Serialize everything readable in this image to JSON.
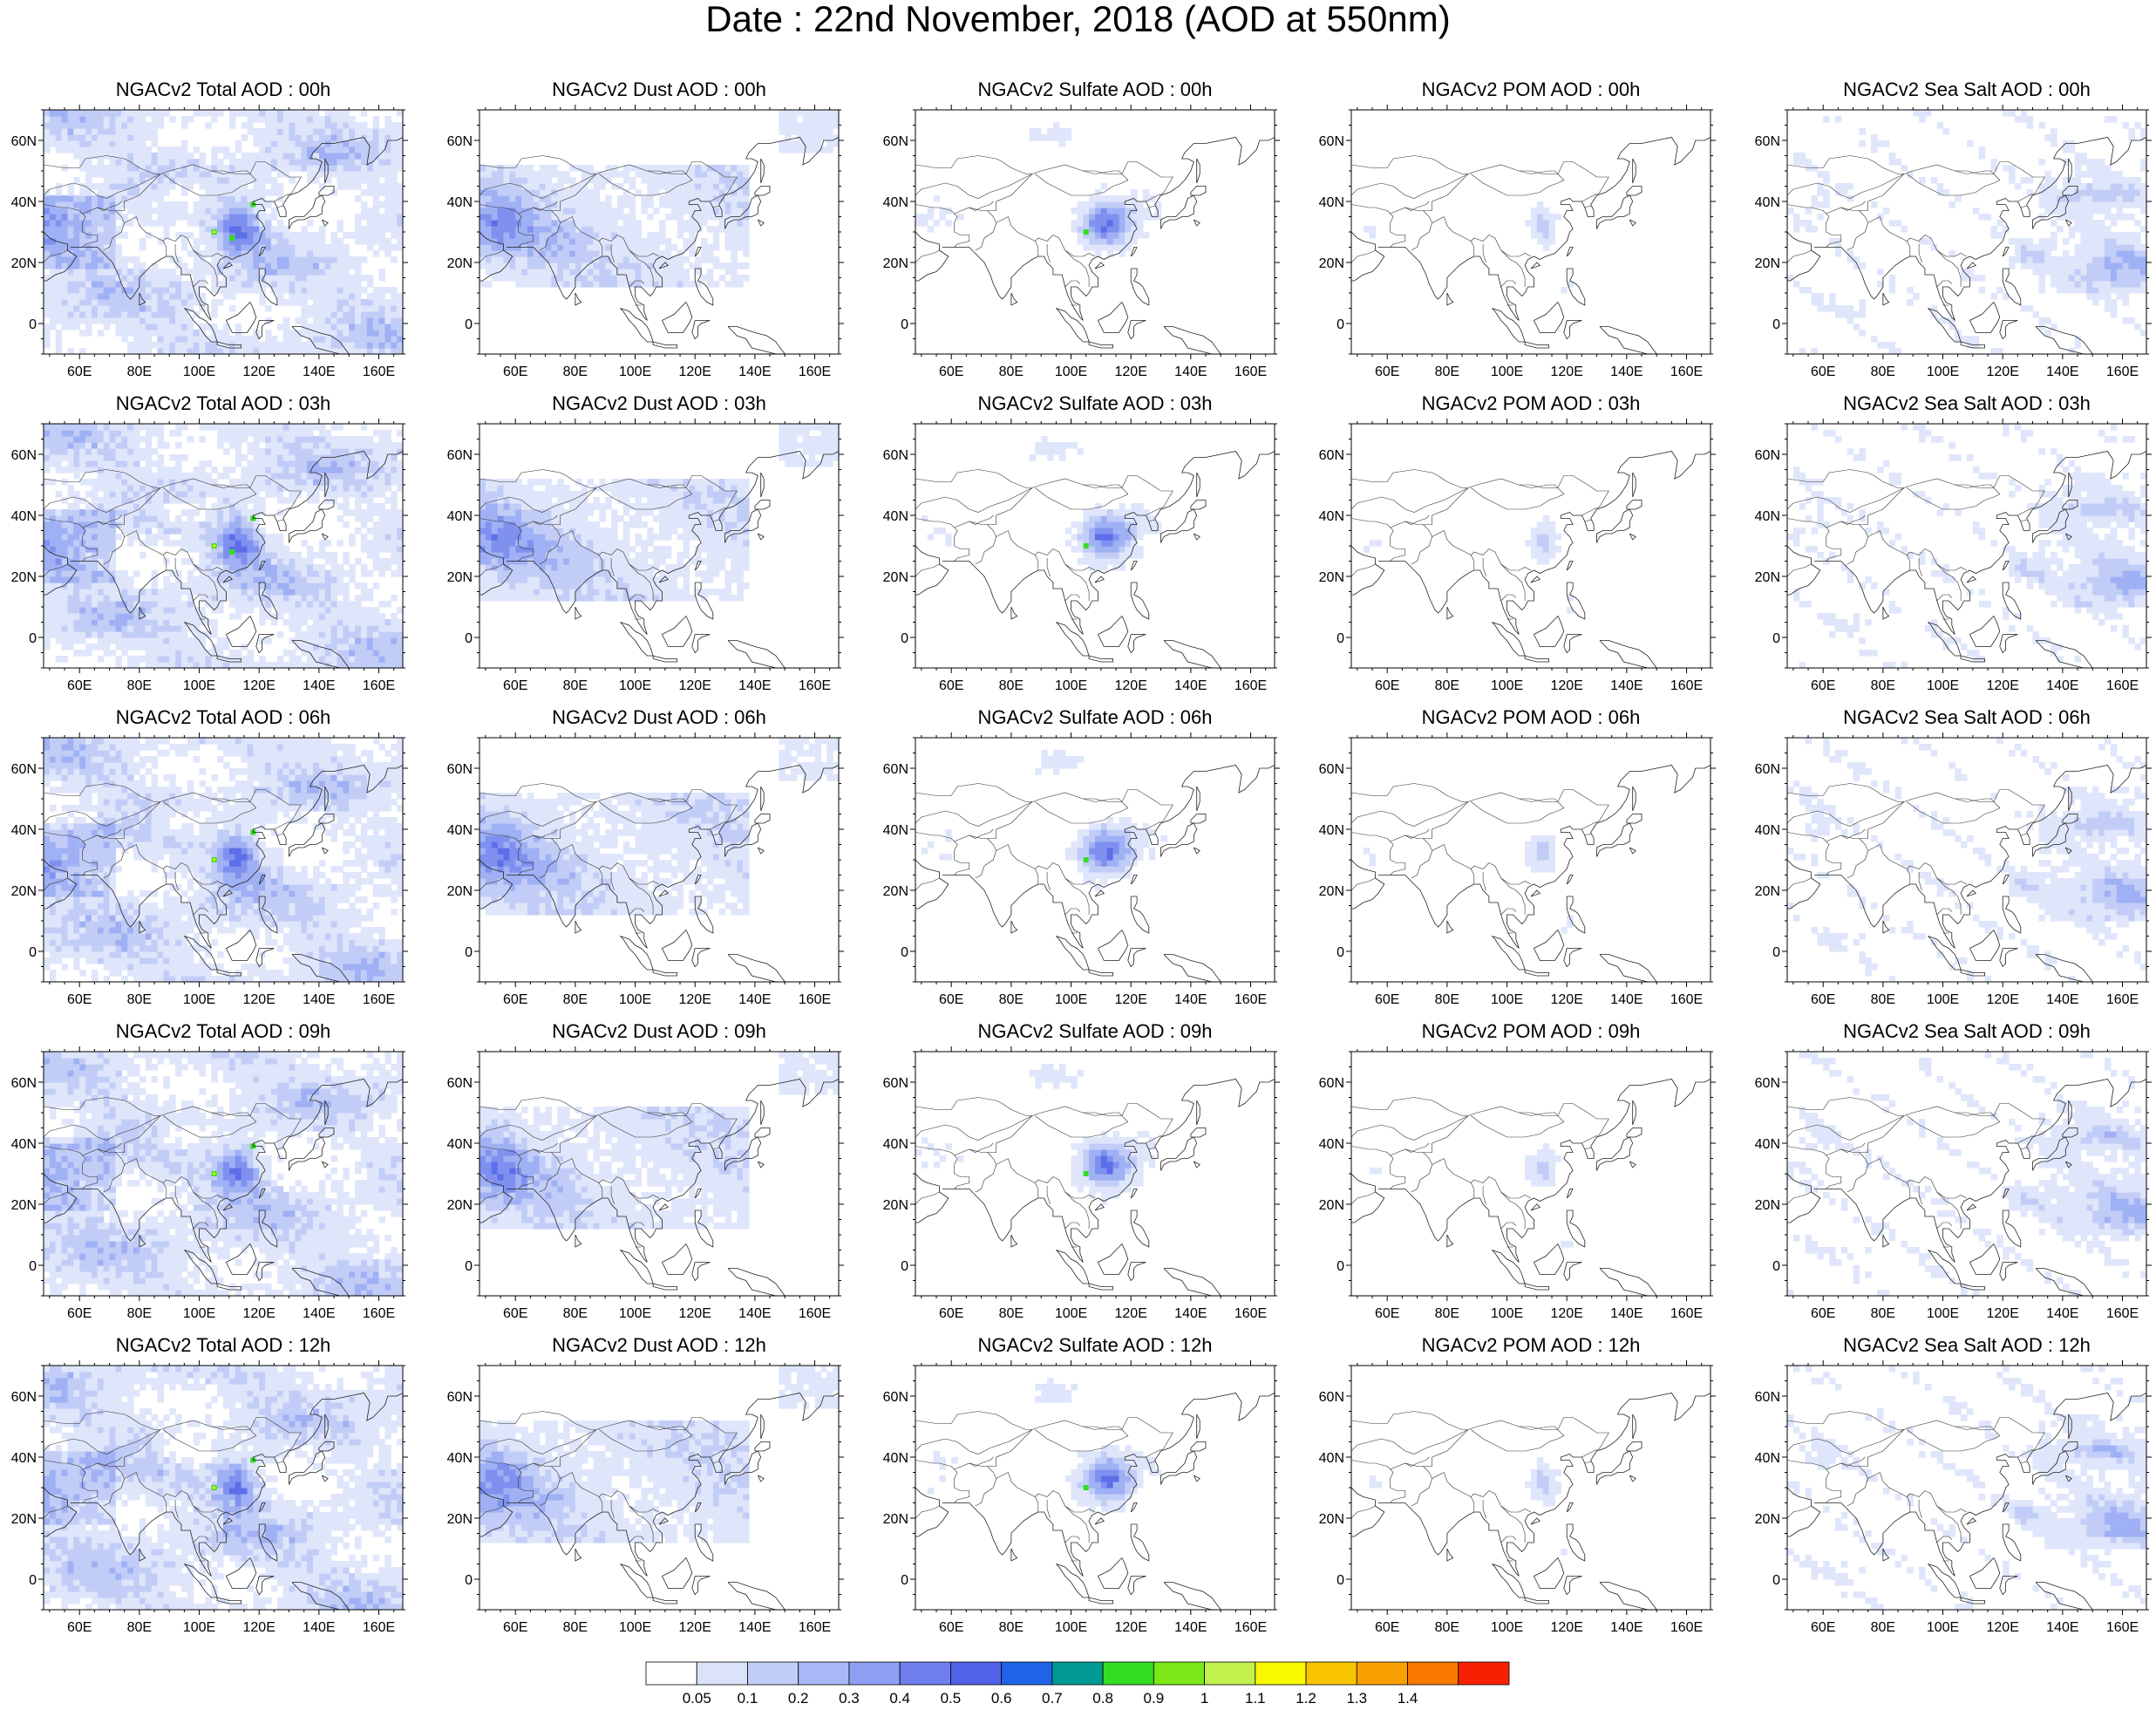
{
  "title": "Date : 22nd November, 2018 (AOD at 550nm)",
  "map": {
    "lon_labels": [
      "60E",
      "80E",
      "100E",
      "120E",
      "140E",
      "160E"
    ],
    "lat_labels": [
      "60N",
      "40N",
      "20N",
      "0"
    ]
  },
  "columns": [
    "total",
    "dust",
    "sulfate",
    "pom",
    "seasalt"
  ],
  "panel_titles": [
    [
      "NGACv2 Total AOD : 00h",
      "NGACv2 Dust AOD : 00h",
      "NGACv2 Sulfate AOD : 00h",
      "NGACv2 POM AOD : 00h",
      "NGACv2 Sea Salt AOD : 00h"
    ],
    [
      "NGACv2 Total AOD : 03h",
      "NGACv2 Dust AOD : 03h",
      "NGACv2 Sulfate AOD : 03h",
      "NGACv2 POM AOD : 03h",
      "NGACv2 Sea Salt AOD : 03h"
    ],
    [
      "NGACv2 Total AOD : 06h",
      "NGACv2 Dust AOD : 06h",
      "NGACv2 Sulfate AOD : 06h",
      "NGACv2 POM AOD : 06h",
      "NGACv2 Sea Salt AOD : 06h"
    ],
    [
      "NGACv2 Total AOD : 09h",
      "NGACv2 Dust AOD : 09h",
      "NGACv2 Sulfate AOD : 09h",
      "NGACv2 POM AOD : 09h",
      "NGACv2 Sea Salt  AOD : 09h"
    ],
    [
      "NGACv2 Total AOD  : 12h",
      "NGACv2 Dust AOD : 12h",
      "NGACv2 Sulfate AOD : 12h",
      "NGACv2 POM  AOD : 12h",
      "NGACv2 Sea Salt  AOD : 12h"
    ]
  ],
  "colorbar": {
    "labels": [
      "0.05",
      "0.1",
      "0.2",
      "0.3",
      "0.4",
      "0.5",
      "0.6",
      "0.7",
      "0.8",
      "0.9",
      "1",
      "1.1",
      "1.2",
      "1.3",
      "1.4"
    ],
    "colors": [
      "#ffffff",
      "#dbe3fb",
      "#c3cef8",
      "#a9b8f6",
      "#8e9ff3",
      "#6f7fee",
      "#5062e8",
      "#1f64e8",
      "#009993",
      "#33dd22",
      "#7de817",
      "#c2f04c",
      "#f8f800",
      "#f8c400",
      "#f8a000",
      "#f87800",
      "#f82000"
    ]
  },
  "palette": {
    "very_light": "#dfe6fb",
    "light": "#c2cdf7",
    "medium": "#9fb0f4",
    "strong": "#7f90ef",
    "intense": "#5c6ee8",
    "peak_green": "#33dd22",
    "peak_yellow": "#f8f800"
  }
}
